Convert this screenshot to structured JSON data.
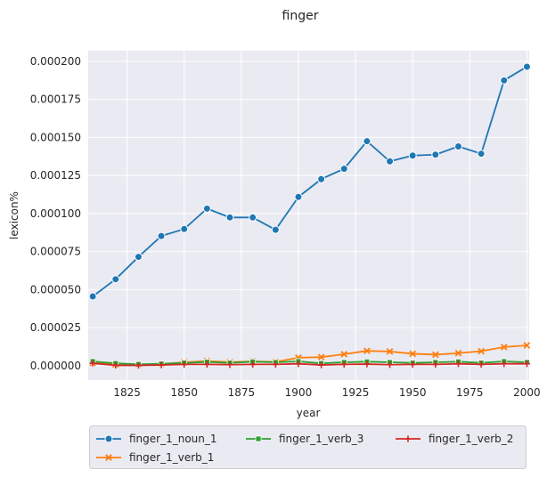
{
  "chart_data": {
    "type": "line",
    "title": "finger",
    "xlabel": "year",
    "ylabel": "lexicon%",
    "xlim": [
      1808,
      2001
    ],
    "ylim": [
      -9.5e-06,
      0.000207
    ],
    "x_ticks": [
      1825,
      1850,
      1875,
      1900,
      1925,
      1950,
      1975,
      2000
    ],
    "y_ticks": [
      0.0,
      2.5e-05,
      5e-05,
      7.5e-05,
      0.0001,
      0.000125,
      0.00015,
      0.000175,
      0.0002
    ],
    "y_tick_labels": [
      "0.000000",
      "0.000025",
      "0.000050",
      "0.000075",
      "0.000100",
      "0.000125",
      "0.000150",
      "0.000175",
      "0.000200"
    ],
    "grid": true,
    "legend_position": "bottom",
    "x": [
      1810,
      1820,
      1830,
      1840,
      1850,
      1860,
      1870,
      1880,
      1890,
      1900,
      1910,
      1920,
      1930,
      1940,
      1950,
      1960,
      1970,
      1980,
      1990,
      2000
    ],
    "series": [
      {
        "name": "finger_1_noun_1",
        "color": "#1f77b4",
        "marker": "circle",
        "values": [
          4.55e-05,
          5.68e-05,
          7.15e-05,
          8.52e-05,
          8.98e-05,
          0.0001032,
          9.74e-05,
          9.74e-05,
          8.93e-05,
          0.0001109,
          0.0001226,
          0.0001294,
          0.0001475,
          0.0001343,
          0.0001381,
          0.0001387,
          0.0001441,
          0.0001393,
          0.0001875,
          0.0001965
        ]
      },
      {
        "name": "finger_1_verb_1",
        "color": "#ff7f0e",
        "marker": "x",
        "values": [
          1.8e-06,
          8e-07,
          6e-07,
          1e-06,
          2.2e-06,
          3e-06,
          2.3e-06,
          2.8e-06,
          2.5e-06,
          5.2e-06,
          5.6e-06,
          7.5e-06,
          9.7e-06,
          9.3e-06,
          7.8e-06,
          7.2e-06,
          8.2e-06,
          9.5e-06,
          1.22e-05,
          1.33e-05
        ]
      },
      {
        "name": "finger_1_verb_3",
        "color": "#2ca02c",
        "marker": "square",
        "values": [
          2.8e-06,
          1.5e-06,
          9e-07,
          1.2e-06,
          1.8e-06,
          2.4e-06,
          1.8e-06,
          2.6e-06,
          2.2e-06,
          2.8e-06,
          1.5e-06,
          2.2e-06,
          2.6e-06,
          2.2e-06,
          1.8e-06,
          2.2e-06,
          2.6e-06,
          1.8e-06,
          2.8e-06,
          2.2e-06
        ]
      },
      {
        "name": "finger_1_verb_2",
        "color": "#d62728",
        "marker": "plus",
        "values": [
          1.5e-06,
          2e-07,
          2e-07,
          4e-07,
          8e-07,
          8e-07,
          6e-07,
          8e-07,
          8e-07,
          1.2e-06,
          4e-07,
          8e-07,
          1e-06,
          6e-07,
          8e-07,
          8e-07,
          1.2e-06,
          8e-07,
          1.2e-06,
          1.2e-06
        ]
      }
    ]
  }
}
